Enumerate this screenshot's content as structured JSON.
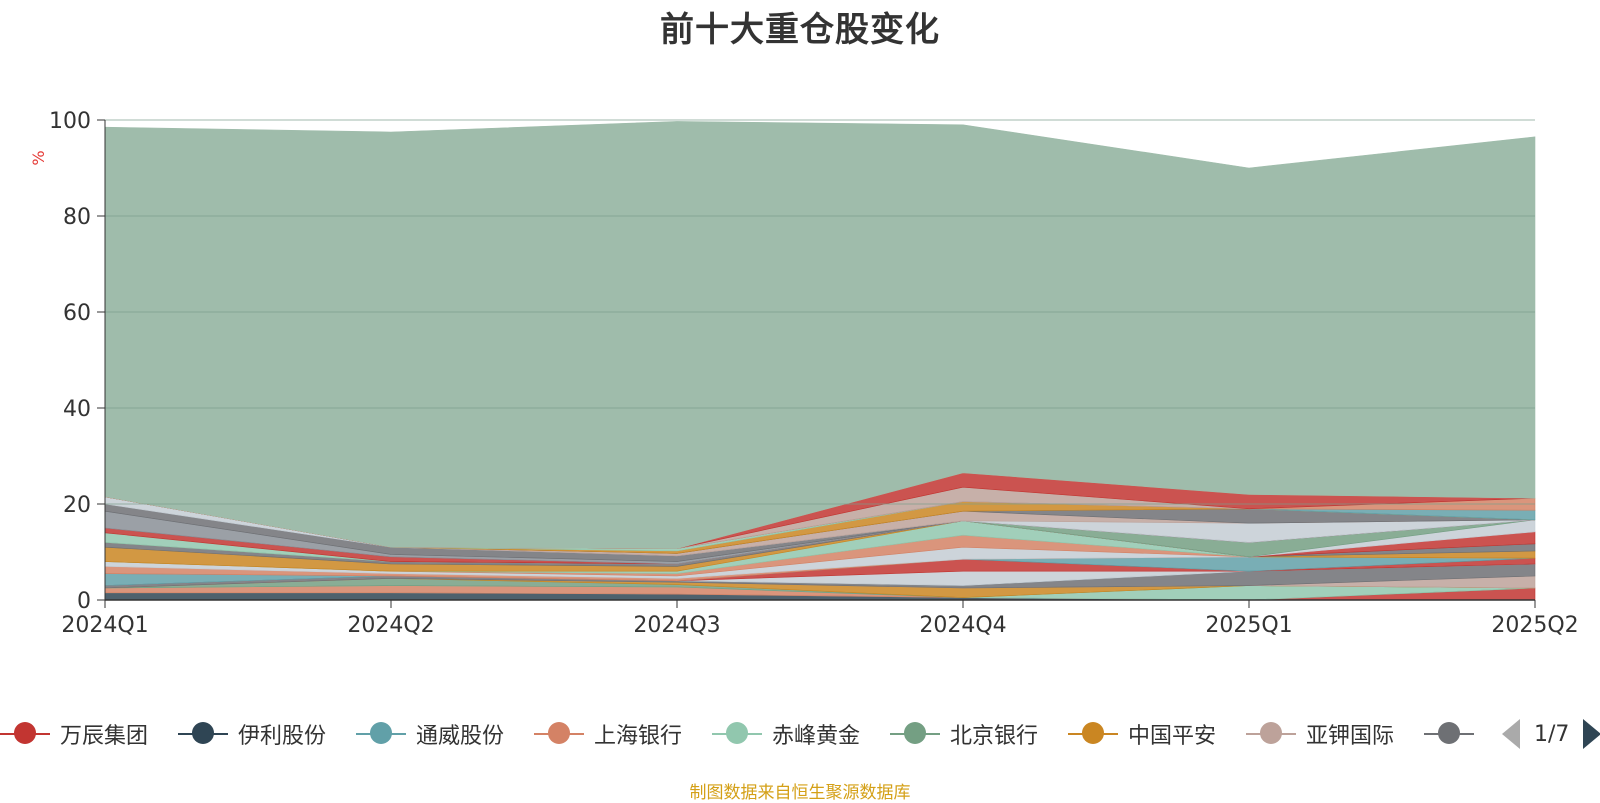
{
  "title": "前十大重仓股变化",
  "source_note": "制图数据来自恒生聚源数据库",
  "legend_pager": "1/7",
  "chart_data": {
    "type": "area",
    "stacked": true,
    "x": [
      "2024Q1",
      "2024Q2",
      "2024Q3",
      "2024Q4",
      "2025Q1",
      "2025Q2"
    ],
    "ylabel": "%",
    "ylim": [
      0,
      100
    ],
    "yticks": [
      0,
      20,
      40,
      60,
      80,
      100
    ],
    "grid": true,
    "legend_position": "bottom",
    "series": [
      {
        "name": "万辰集团",
        "color": "#c23531",
        "values": [
          0,
          0,
          0,
          0,
          0,
          2.5
        ]
      },
      {
        "name": "伊利股份",
        "color": "#2f4554",
        "values": [
          1.5,
          1.5,
          1.2,
          0.5,
          0,
          0
        ]
      },
      {
        "name": "通威股份",
        "color": "#61a0a8",
        "values": [
          0,
          0,
          0,
          0,
          0,
          0
        ]
      },
      {
        "name": "上海银行",
        "color": "#d48265",
        "values": [
          1,
          1.5,
          1.5,
          0,
          0,
          0
        ]
      },
      {
        "name": "赤峰黄金",
        "color": "#91c7ae",
        "values": [
          0,
          0,
          0,
          0,
          3,
          0
        ]
      },
      {
        "name": "北京银行",
        "color": "#749f83",
        "values": [
          0,
          1.5,
          0.5,
          0,
          0,
          0
        ]
      },
      {
        "name": "中国平安",
        "color": "#ca8622",
        "values": [
          0,
          0,
          0.5,
          2,
          0,
          0
        ]
      },
      {
        "name": "亚钾国际",
        "color": "#bda29a",
        "values": [
          0,
          0,
          0,
          0,
          0,
          2.5
        ]
      },
      {
        "name": "",
        "color": "#6e7074",
        "values": [
          0.5,
          0.5,
          0.3,
          0.5,
          3,
          2.5
        ]
      },
      {
        "name": "",
        "color": "#546570",
        "values": [
          0,
          0,
          0,
          0,
          0,
          0
        ]
      },
      {
        "name": "",
        "color": "#c4ccd3",
        "values": [
          0,
          0,
          0,
          3,
          0,
          0
        ]
      },
      {
        "name": "",
        "color": "#c23531",
        "values": [
          0,
          0,
          0,
          2.5,
          0,
          1.2
        ]
      },
      {
        "name": "",
        "color": "#61a0a8",
        "values": [
          2.5,
          0,
          0,
          0,
          3,
          0
        ]
      },
      {
        "name": "",
        "color": "#d48265",
        "values": [
          1.5,
          0.5,
          0.5,
          0,
          0,
          0
        ]
      },
      {
        "name": "",
        "color": "#c4ccd3",
        "values": [
          1,
          0.5,
          0.5,
          2.5,
          0,
          0
        ]
      },
      {
        "name": "",
        "color": "#d48265",
        "values": [
          0,
          0,
          0.5,
          2.5,
          0,
          0
        ]
      },
      {
        "name": "",
        "color": "#91c7ae",
        "values": [
          0,
          0,
          0.5,
          3,
          0,
          0
        ]
      },
      {
        "name": "",
        "color": "#ca8622",
        "values": [
          3,
          1.5,
          1,
          0,
          0,
          1.5
        ]
      },
      {
        "name": "",
        "color": "#6e7074",
        "values": [
          1,
          0.5,
          0.5,
          0,
          0,
          1.5
        ]
      },
      {
        "name": "",
        "color": "#c23531",
        "values": [
          0,
          0,
          0,
          0,
          0,
          2.5
        ]
      },
      {
        "name": "",
        "color": "#c4ccd3",
        "values": [
          0,
          0,
          0,
          0,
          0,
          2.5
        ]
      },
      {
        "name": "",
        "color": "#749f83",
        "values": [
          0,
          0,
          0,
          0,
          3,
          0
        ]
      },
      {
        "name": "",
        "color": "#91c7ae",
        "values": [
          2,
          0,
          0,
          0,
          0,
          0
        ]
      },
      {
        "name": "",
        "color": "#c23531",
        "values": [
          1,
          1,
          0,
          0,
          0,
          0
        ]
      },
      {
        "name": "",
        "color": "#8a8f96",
        "values": [
          3.5,
          0.5,
          0.5,
          0,
          0,
          0
        ]
      },
      {
        "name": "",
        "color": "#6e7074",
        "values": [
          1.5,
          1.5,
          1.2,
          0,
          0,
          0
        ]
      },
      {
        "name": "",
        "color": "#c4ccd3",
        "values": [
          1.5,
          0,
          0,
          0,
          4,
          0
        ]
      },
      {
        "name": "",
        "color": "#bda29a",
        "values": [
          0,
          0,
          0.5,
          2,
          0,
          0
        ]
      },
      {
        "name": "",
        "color": "#6e7074",
        "values": [
          0,
          0,
          0,
          0,
          3,
          0
        ]
      },
      {
        "name": "",
        "color": "#ca8622",
        "values": [
          0,
          0,
          0.5,
          2,
          0,
          0
        ]
      },
      {
        "name": "",
        "color": "#91c7ae",
        "values": [
          0,
          0,
          0.5,
          0,
          0,
          0
        ]
      },
      {
        "name": "",
        "color": "#61a0a8",
        "values": [
          0,
          0,
          0,
          0,
          0,
          2
        ]
      },
      {
        "name": "",
        "color": "#d48265",
        "values": [
          0,
          0,
          0,
          0,
          0,
          2.5
        ]
      },
      {
        "name": "",
        "color": "#bda29a",
        "values": [
          0,
          0,
          0,
          3,
          0,
          0
        ]
      },
      {
        "name": "",
        "color": "#c23531",
        "values": [
          0,
          0,
          0,
          3,
          3,
          0
        ]
      },
      {
        "name": "",
        "color": "#d48265",
        "values": [
          0,
          0,
          0,
          0,
          0,
          0
        ]
      },
      {
        "name": "",
        "color": "#9fbcab",
        "values": [
          77,
          86.5,
          89,
          72.5,
          68,
          75.3
        ]
      }
    ]
  }
}
